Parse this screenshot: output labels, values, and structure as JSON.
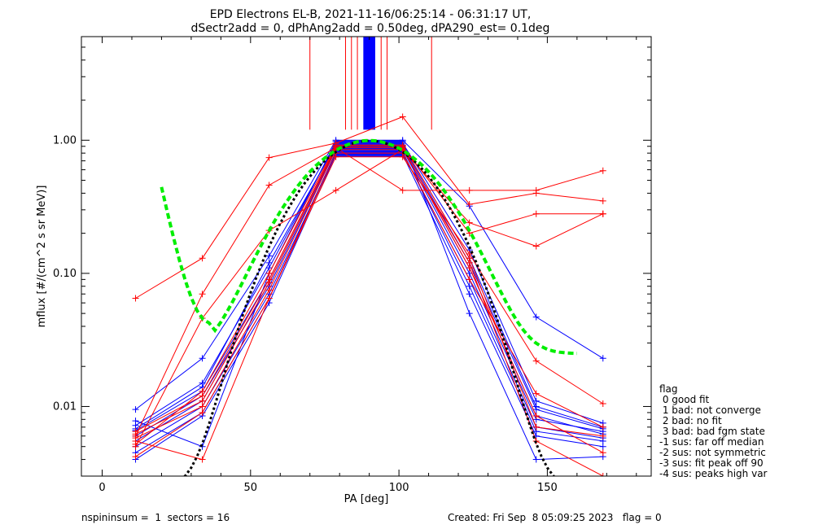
{
  "chart_data": {
    "type": "line",
    "title": "EPD Electrons EL-B, 2021-11-16/06:25:14 - 06:31:17 UT,",
    "subtitle": "dSectr2add = 0, dPhAng2add = 0.50deg, dPA290_est=   0.1deg",
    "xlabel": "PA [deg]",
    "ylabel": "mflux [#/(cm^2 s sr MeV)]",
    "xlim": [
      -7,
      185
    ],
    "ylim": [
      0.003,
      6.0
    ],
    "yscale": "log",
    "xticks": [
      0,
      50,
      100,
      150
    ],
    "xtick_labels": [
      "0",
      "50",
      "100",
      "150"
    ],
    "yticks": [
      0.01,
      0.1,
      1.0
    ],
    "ytick_labels": [
      "0.01",
      "0.10",
      "1.00"
    ],
    "grid": false,
    "pa_samples": [
      11.25,
      33.75,
      56.25,
      78.75,
      101.25,
      123.75,
      146.25,
      168.75
    ],
    "series": [
      {
        "color": "#0000ff",
        "curves": [
          [
            0.0095,
            0.023,
            0.135,
            1.0,
            1.0,
            0.32,
            0.047,
            0.023
          ],
          [
            0.006,
            0.012,
            0.08,
            0.85,
            0.85,
            0.1,
            0.008,
            0.0065
          ],
          [
            0.005,
            0.01,
            0.07,
            0.8,
            0.8,
            0.09,
            0.007,
            0.0058
          ],
          [
            0.0072,
            0.015,
            0.11,
            0.95,
            0.95,
            0.15,
            0.011,
            0.0075
          ],
          [
            0.004,
            0.0085,
            0.06,
            0.78,
            0.78,
            0.07,
            0.006,
            0.005
          ],
          [
            0.0066,
            0.013,
            0.09,
            0.9,
            0.9,
            0.12,
            0.0095,
            0.0068
          ],
          [
            0.0078,
            0.005,
            0.1,
            0.98,
            0.98,
            0.05,
            0.004,
            0.0042
          ],
          [
            0.0045,
            0.009,
            0.065,
            0.82,
            0.82,
            0.08,
            0.0065,
            0.0055
          ],
          [
            0.0068,
            0.014,
            0.12,
            0.92,
            0.92,
            0.13,
            0.01,
            0.007
          ],
          [
            0.0055,
            0.011,
            0.085,
            0.87,
            0.87,
            0.11,
            0.0085,
            0.0062
          ]
        ]
      },
      {
        "color": "#ff0000",
        "curves": [
          [
            0.065,
            0.13,
            0.74,
            0.95,
            1.5,
            0.33,
            0.4,
            0.35
          ],
          [
            0.006,
            0.07,
            0.46,
            0.88,
            0.42,
            0.42,
            0.42,
            0.59
          ],
          [
            0.005,
            0.046,
            0.21,
            0.42,
            0.85,
            0.24,
            0.16,
            0.28
          ],
          [
            0.0065,
            0.012,
            0.09,
            0.9,
            0.9,
            0.2,
            0.28,
            0.28
          ],
          [
            0.0055,
            0.004,
            0.065,
            0.75,
            0.75,
            0.14,
            0.022,
            0.0105
          ],
          [
            0.0058,
            0.01,
            0.075,
            0.85,
            0.85,
            0.12,
            0.0055,
            0.003
          ],
          [
            0.0042,
            0.009,
            0.065,
            0.8,
            0.8,
            0.09,
            0.0125,
            0.007
          ],
          [
            0.0062,
            0.011,
            0.085,
            0.88,
            0.88,
            0.11,
            0.0085,
            0.0045
          ],
          [
            0.0052,
            0.013,
            0.1,
            0.92,
            0.92,
            0.13,
            0.007,
            0.006
          ]
        ]
      }
    ],
    "fit_green": {
      "color": "#00ee00",
      "pa_range": [
        20,
        160
      ],
      "peak": 1.0,
      "note": "dashed fit curve"
    },
    "fit_black": {
      "color": "#000000",
      "pa_range": [
        20,
        160
      ],
      "note": "dotted fit curve"
    },
    "spikes_red_x": [
      70,
      82,
      84,
      86,
      94,
      96,
      111
    ],
    "spike_blue_range": [
      88,
      92
    ],
    "legend": {
      "title": "flag",
      "items": [
        " 0 good fit",
        " 1 bad: not converge",
        " 2 bad: no fit",
        " 3 bad: bad fgm state",
        "-1 sus: far off median",
        "-2 sus: not symmetric",
        "-3 sus: fit peak off 90",
        "-4 sus: peaks high var"
      ]
    }
  },
  "footer": {
    "left": "nspininsum =  1  sectors = 16",
    "right": "Created: Fri Sep  8 05:09:25 2023   flag = 0"
  }
}
